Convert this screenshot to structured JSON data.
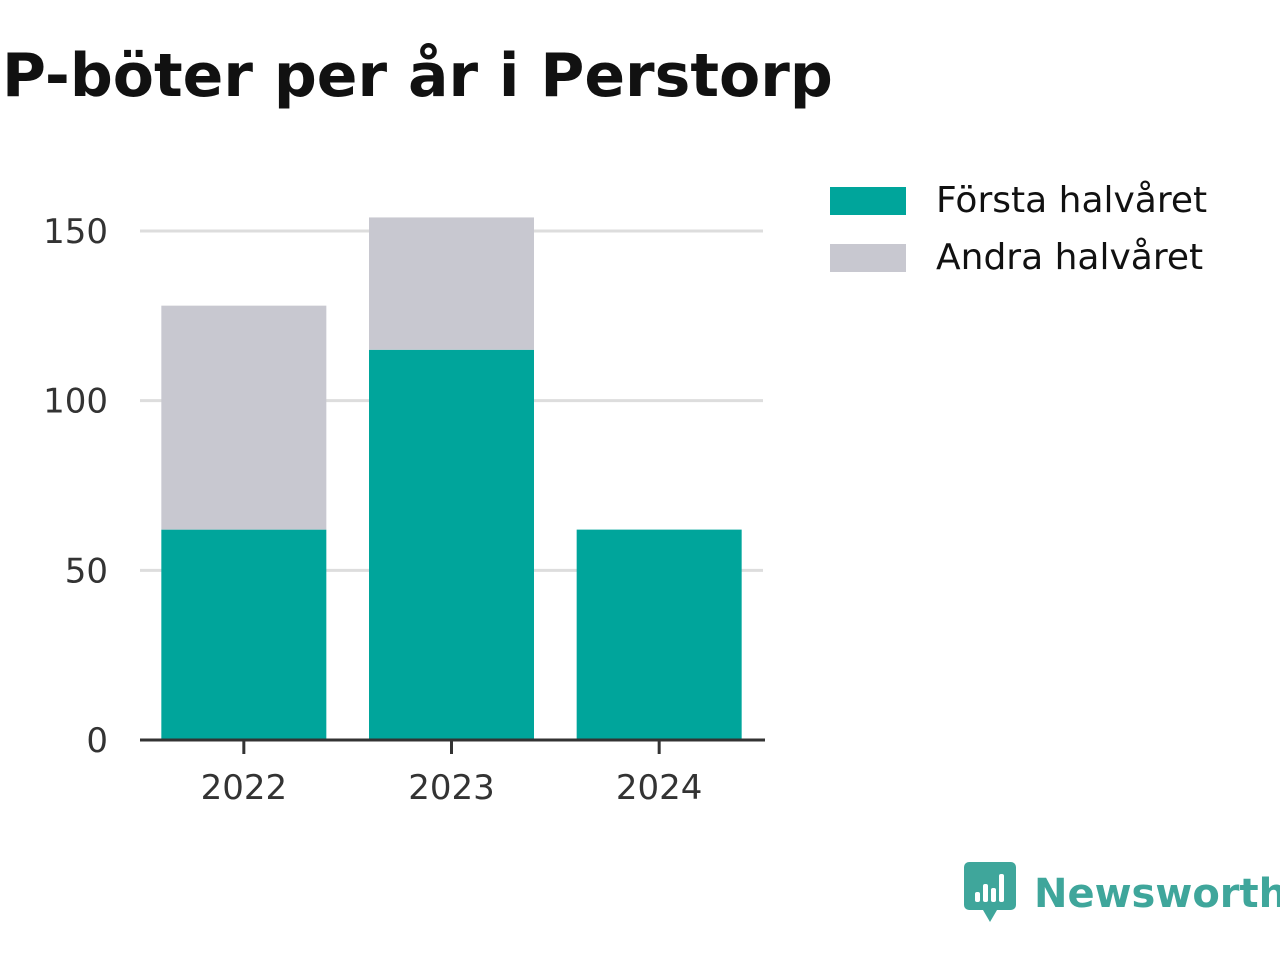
{
  "title": "P-böter per år i Perstorp",
  "legend": {
    "items": [
      {
        "label": "Första halvåret",
        "color": "#00a59b"
      },
      {
        "label": "Andra halvåret",
        "color": "#c8c8d0"
      }
    ]
  },
  "brand": {
    "name": "Newsworthy",
    "color": "#3fa69b",
    "icon": "newsworthy-logo-icon"
  },
  "chart_data": {
    "type": "bar",
    "stacked": true,
    "title": "P-böter per år i Perstorp",
    "xlabel": "",
    "ylabel": "",
    "categories": [
      "2022",
      "2023",
      "2024"
    ],
    "series": [
      {
        "name": "Första halvåret",
        "values": [
          62,
          115,
          62
        ],
        "color": "#00a59b"
      },
      {
        "name": "Andra halvåret",
        "values": [
          66,
          39,
          0
        ],
        "color": "#c8c8d0"
      }
    ],
    "ylim": [
      0,
      155
    ],
    "yticks": [
      0,
      50,
      100,
      150
    ],
    "grid": true,
    "legend_position": "top-right"
  }
}
